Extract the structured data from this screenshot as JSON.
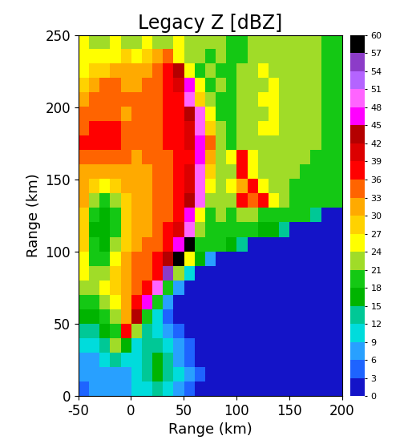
{
  "chart_data": {
    "type": "heatmap",
    "title": "Legacy Z [dBZ]",
    "x_label": "Range (km)",
    "y_label": "Range (km)",
    "xlim": [
      -50,
      200
    ],
    "xticks": [
      -50,
      0,
      50,
      100,
      150,
      200
    ],
    "ylim": [
      0,
      250
    ],
    "yticks": [
      0,
      50,
      100,
      150,
      200,
      250
    ],
    "cells": [
      [
        24,
        22,
        22,
        24,
        22,
        22,
        24,
        22,
        22,
        24,
        21,
        22,
        22,
        21,
        20,
        20,
        21,
        22,
        22,
        22,
        21,
        22,
        21,
        20,
        20
      ],
      [
        24,
        25,
        24,
        26,
        27,
        26,
        28,
        30,
        33,
        24,
        21,
        21,
        20,
        21,
        19,
        20,
        22,
        22,
        23,
        22,
        22,
        22,
        21,
        20,
        20
      ],
      [
        26,
        27,
        28,
        30,
        30,
        30,
        32,
        33,
        36,
        42,
        24,
        20,
        21,
        20,
        20,
        21,
        22,
        24,
        23,
        22,
        22,
        21,
        21,
        20,
        19
      ],
      [
        27,
        30,
        33,
        33,
        32,
        32,
        33,
        34,
        36,
        40,
        45,
        24,
        20,
        21,
        20,
        21,
        22,
        23,
        24,
        22,
        22,
        22,
        21,
        20,
        19
      ],
      [
        30,
        33,
        34,
        34,
        33,
        33,
        34,
        34,
        36,
        38,
        48,
        27,
        21,
        20,
        20,
        21,
        22,
        24,
        24,
        23,
        22,
        21,
        21,
        20,
        19
      ],
      [
        33,
        35,
        34,
        33,
        32,
        33,
        34,
        35,
        37,
        38,
        42,
        50,
        25,
        20,
        20,
        21,
        22,
        23,
        24,
        23,
        22,
        22,
        21,
        20,
        19
      ],
      [
        35,
        36,
        37,
        36,
        34,
        33,
        33,
        34,
        36,
        37,
        40,
        48,
        28,
        21,
        20,
        21,
        22,
        24,
        24,
        23,
        22,
        22,
        21,
        20,
        19
      ],
      [
        36,
        38,
        38,
        37,
        35,
        33,
        33,
        34,
        36,
        37,
        39,
        45,
        33,
        22,
        20,
        21,
        22,
        23,
        23,
        22,
        22,
        21,
        21,
        20,
        19
      ],
      [
        33,
        35,
        35,
        34,
        33,
        32,
        33,
        33,
        35,
        36,
        38,
        46,
        30,
        22,
        24,
        38,
        24,
        23,
        22,
        22,
        21,
        21,
        20,
        19,
        19
      ],
      [
        30,
        32,
        30,
        31,
        32,
        32,
        32,
        33,
        34,
        36,
        39,
        48,
        28,
        22,
        22,
        36,
        24,
        22,
        22,
        21,
        21,
        20,
        20,
        19,
        18
      ],
      [
        30,
        27,
        24,
        27,
        30,
        31,
        32,
        33,
        34,
        36,
        40,
        50,
        24,
        22,
        24,
        30,
        38,
        26,
        22,
        21,
        20,
        20,
        19,
        19,
        18
      ],
      [
        30,
        22,
        18,
        22,
        28,
        30,
        31,
        33,
        34,
        37,
        42,
        48,
        22,
        22,
        22,
        36,
        34,
        36,
        26,
        21,
        20,
        19,
        19,
        18,
        18
      ],
      [
        28,
        18,
        16,
        20,
        28,
        30,
        31,
        33,
        35,
        38,
        45,
        24,
        20,
        21,
        20,
        22,
        21,
        20,
        20,
        19,
        18,
        18,
        12,
        2,
        1
      ],
      [
        27,
        16,
        15,
        20,
        28,
        31,
        32,
        34,
        36,
        39,
        50,
        22,
        19,
        19,
        18,
        19,
        18,
        17,
        15,
        12,
        2,
        1,
        1,
        1,
        1
      ],
      [
        27,
        18,
        16,
        22,
        29,
        32,
        33,
        35,
        38,
        45,
        57,
        20,
        18,
        18,
        17,
        12,
        2,
        1,
        1,
        1,
        1,
        1,
        1,
        1,
        1
      ],
      [
        26,
        20,
        18,
        24,
        30,
        33,
        34,
        36,
        42,
        57,
        24,
        15,
        8,
        2,
        1,
        1,
        1,
        1,
        1,
        1,
        1,
        1,
        1,
        1,
        1
      ],
      [
        24,
        22,
        22,
        27,
        31,
        33,
        35,
        38,
        54,
        22,
        10,
        2,
        1,
        1,
        1,
        1,
        1,
        1,
        1,
        1,
        1,
        1,
        1,
        1,
        1
      ],
      [
        22,
        23,
        25,
        28,
        32,
        34,
        36,
        48,
        20,
        8,
        2,
        1,
        1,
        1,
        1,
        1,
        1,
        1,
        1,
        1,
        1,
        1,
        1,
        1,
        1
      ],
      [
        18,
        20,
        22,
        26,
        30,
        36,
        45,
        18,
        6,
        2,
        1,
        1,
        1,
        1,
        1,
        1,
        1,
        1,
        1,
        1,
        1,
        1,
        1,
        1,
        1
      ],
      [
        15,
        16,
        18,
        22,
        30,
        42,
        20,
        10,
        4,
        2,
        1,
        1,
        1,
        1,
        1,
        1,
        1,
        1,
        1,
        1,
        1,
        1,
        1,
        1,
        1
      ],
      [
        12,
        12,
        15,
        18,
        36,
        22,
        12,
        10,
        8,
        4,
        2,
        1,
        1,
        1,
        1,
        1,
        1,
        1,
        1,
        1,
        1,
        1,
        1,
        1,
        1
      ],
      [
        10,
        10,
        12,
        22,
        15,
        10,
        12,
        12,
        10,
        8,
        3,
        1,
        1,
        1,
        1,
        1,
        1,
        1,
        1,
        1,
        1,
        1,
        1,
        1,
        1
      ],
      [
        8,
        8,
        10,
        12,
        9,
        10,
        14,
        15,
        12,
        8,
        4,
        2,
        1,
        1,
        1,
        1,
        1,
        1,
        1,
        1,
        1,
        1,
        1,
        1,
        1
      ],
      [
        6,
        8,
        8,
        8,
        8,
        10,
        14,
        16,
        14,
        10,
        6,
        3,
        2,
        1,
        1,
        1,
        1,
        1,
        1,
        1,
        1,
        1,
        1,
        1,
        1
      ],
      [
        5,
        6,
        6,
        8,
        6,
        9,
        10,
        12,
        10,
        8,
        5,
        2,
        1,
        1,
        1,
        1,
        1,
        1,
        1,
        1,
        1,
        1,
        1,
        1,
        1
      ]
    ],
    "colorbar": {
      "range": [
        0,
        60
      ],
      "ticks": [
        0,
        3,
        6,
        9,
        12,
        15,
        18,
        21,
        24,
        27,
        30,
        33,
        36,
        39,
        42,
        45,
        48,
        51,
        54,
        57,
        60
      ],
      "colors": [
        "#1414c8",
        "#1e64ff",
        "#28a0ff",
        "#00dcdc",
        "#00c896",
        "#00b400",
        "#14c814",
        "#a0dc28",
        "#ffff00",
        "#ffd200",
        "#ffaa00",
        "#ff6400",
        "#ff0000",
        "#dc0000",
        "#b40000",
        "#ff00ff",
        "#ff64ff",
        "#b464ff",
        "#8c3cc8",
        "#000000"
      ]
    }
  }
}
